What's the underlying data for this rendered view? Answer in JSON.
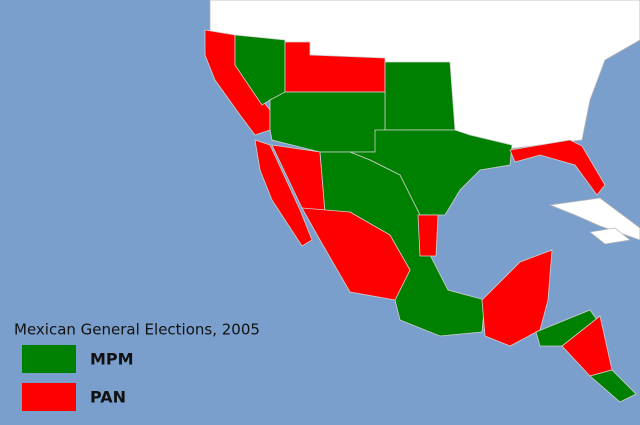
{
  "legend": {
    "title": "Mexican General Elections, 2005",
    "items": [
      {
        "label": "MPM",
        "color": "#008000"
      },
      {
        "label": "PAN",
        "color": "#ff0000"
      }
    ]
  }
}
